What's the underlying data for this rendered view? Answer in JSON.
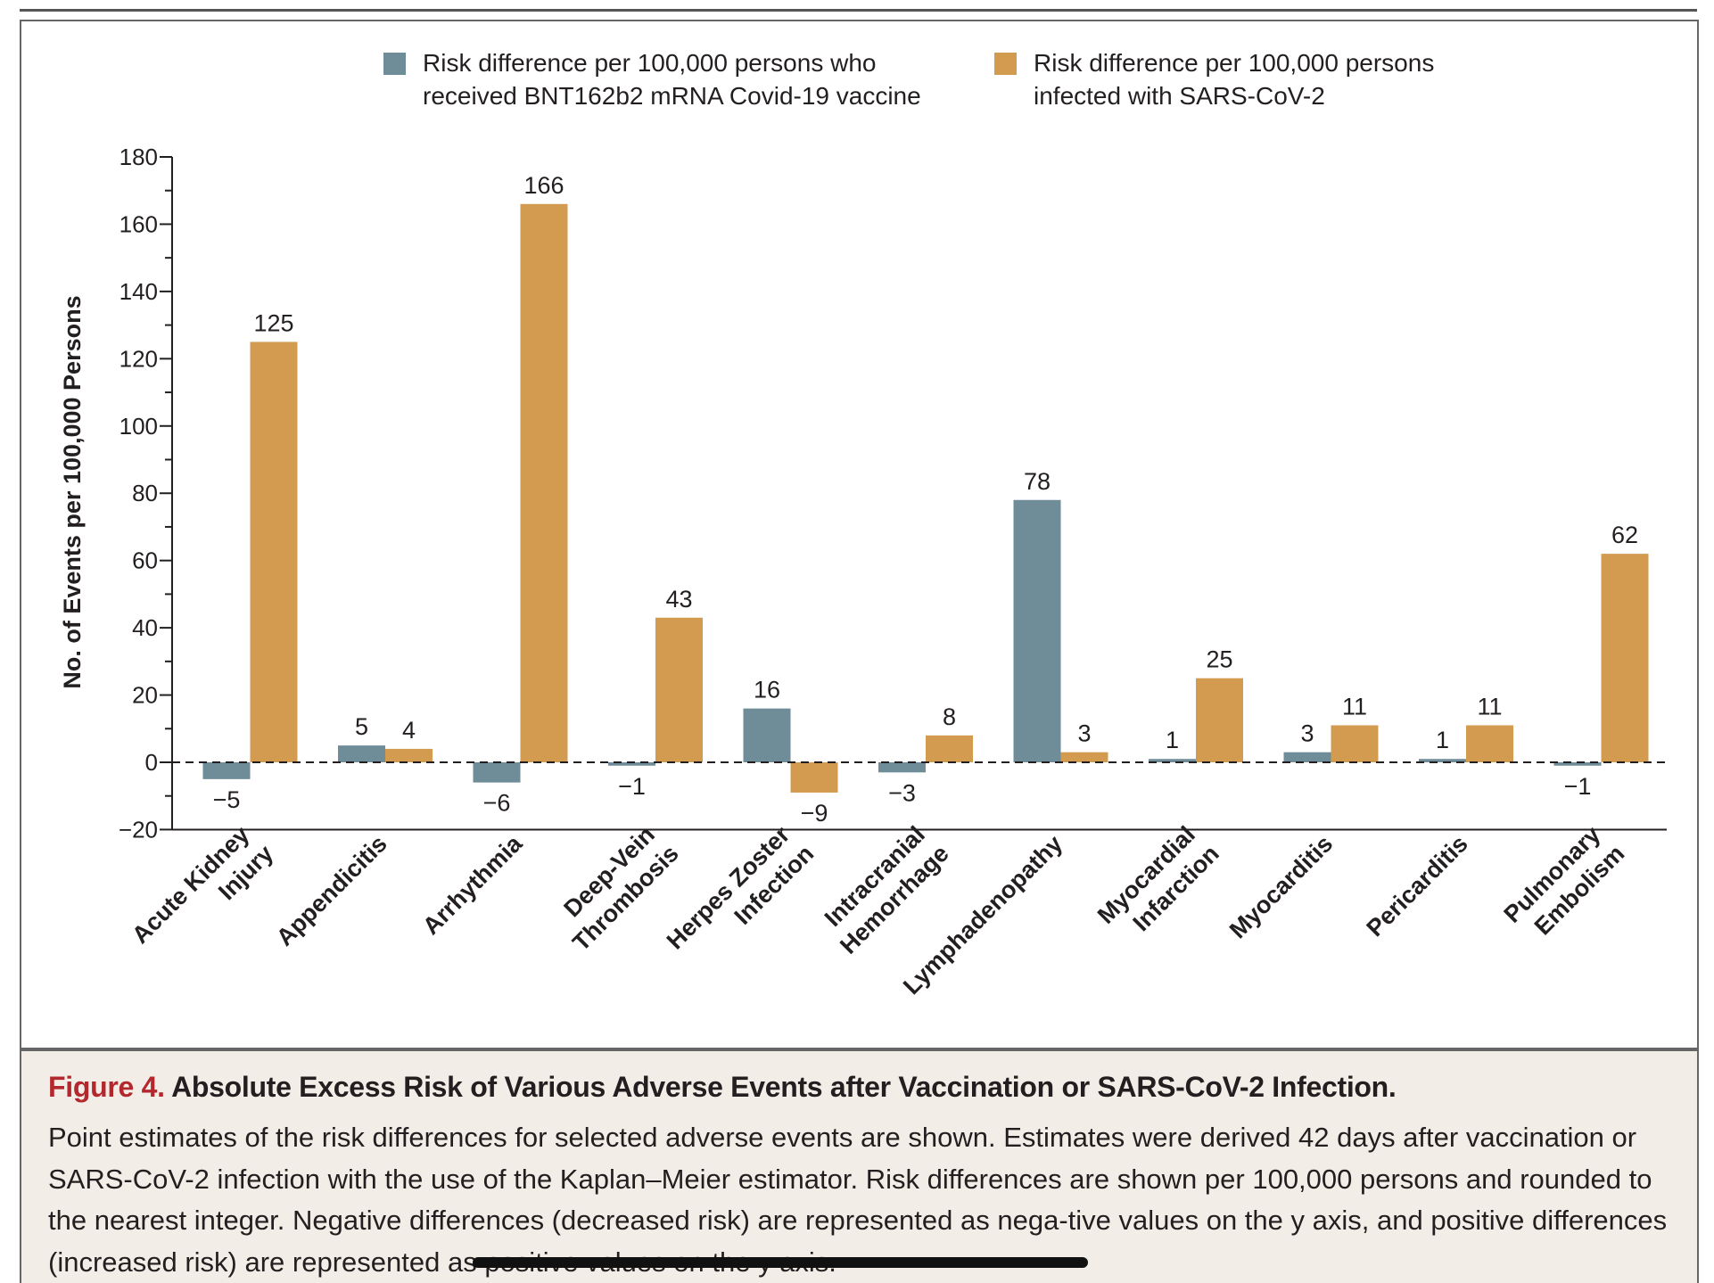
{
  "chart_data": {
    "type": "bar",
    "title": "",
    "ylabel": "No. of Events per 100,000 Persons",
    "xlabel": "",
    "ylim": [
      -20,
      180
    ],
    "yticks": [
      -20,
      0,
      20,
      40,
      60,
      80,
      100,
      120,
      140,
      160,
      180
    ],
    "ytick_labels": [
      "−20",
      "0",
      "20",
      "40",
      "60",
      "80",
      "100",
      "120",
      "140",
      "160",
      "180"
    ],
    "grid": false,
    "legend_placement": "top",
    "categories": [
      [
        "Acute Kidney",
        "Injury"
      ],
      [
        "Appendicitis"
      ],
      [
        "Arrhythmia"
      ],
      [
        "Deep-Vein",
        "Thrombosis"
      ],
      [
        "Herpes Zoster",
        "Infection"
      ],
      [
        "Intracranial",
        "Hemorrhage"
      ],
      [
        "Lymphadenopathy"
      ],
      [
        "Myocardial",
        "Infarction"
      ],
      [
        "Myocarditis"
      ],
      [
        "Pericarditis"
      ],
      [
        "Pulmonary",
        "Embolism"
      ]
    ],
    "series": [
      {
        "name": "Risk difference per 100,000 persons who received BNT162b2 mRNA Covid-19 vaccine",
        "legend_lines": [
          "Risk difference per 100,000 persons who",
          "received BNT162b2 mRNA Covid-19 vaccine"
        ],
        "color": "#6f8c99",
        "values": [
          -5,
          5,
          -6,
          -1,
          16,
          -3,
          78,
          1,
          3,
          1,
          -1
        ]
      },
      {
        "name": "Risk difference per 100,000 persons infected with SARS-CoV-2",
        "legend_lines": [
          "Risk difference per 100,000 persons",
          "infected with SARS-CoV-2"
        ],
        "color": "#d39b50",
        "values": [
          125,
          4,
          166,
          43,
          -9,
          8,
          3,
          25,
          11,
          11,
          62
        ]
      }
    ]
  },
  "caption": {
    "figure_label": "Figure 4.",
    "title": "Absolute Excess Risk of Various Adverse Events after Vaccination or SARS-CoV-2 Infection.",
    "body": "Point estimates of the risk differences for selected adverse events are shown. Estimates were derived 42 days after vaccination or SARS-CoV-2 infection with the use of the Kaplan–Meier estimator. Risk differences are shown per 100,000 persons and rounded to the nearest integer. Negative differences (decreased risk) are represented as nega-tive values on the y axis, and positive differences (increased risk) are represented as positive values on the y axis."
  }
}
